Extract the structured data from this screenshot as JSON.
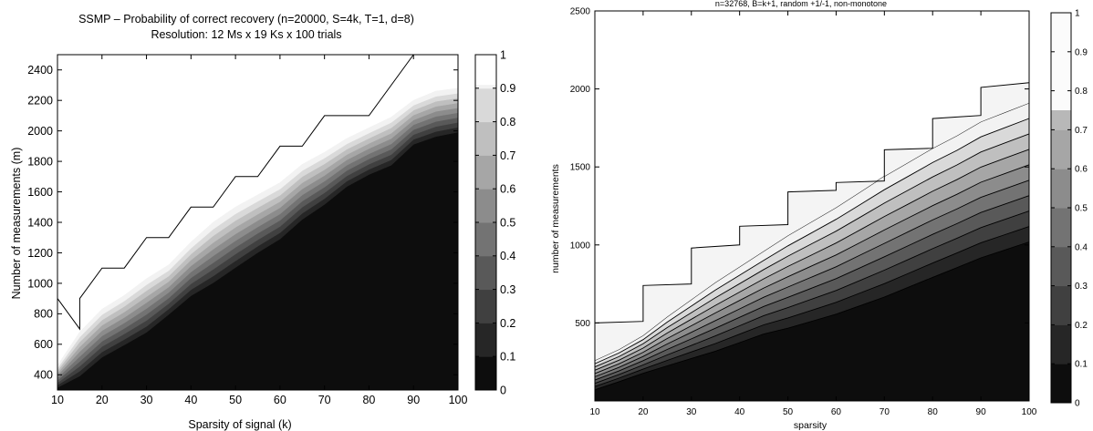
{
  "chart_data": [
    {
      "type": "contour",
      "title": "SSMP – Probability of correct recovery (n=20000, S=4k, T=1, d=8)",
      "subtitle": "Resolution: 12 Ms x 19 Ks x 100 trials",
      "xlabel": "Sparsity of signal (k)",
      "ylabel": "Number of measurements (m)",
      "xlim": [
        10,
        100
      ],
      "ylim": [
        300,
        2500
      ],
      "xticks": [
        "10",
        "20",
        "30",
        "40",
        "50",
        "60",
        "70",
        "80",
        "90",
        "100"
      ],
      "yticks": [
        "400",
        "600",
        "800",
        "1000",
        "1200",
        "1400",
        "1600",
        "1800",
        "2000",
        "2200",
        "2400"
      ],
      "colorbar": {
        "range": [
          0,
          1
        ],
        "ticks": [
          "0",
          "0.1",
          "0.2",
          "0.3",
          "0.4",
          "0.5",
          "0.6",
          "0.7",
          "0.8",
          "0.9",
          "1"
        ]
      },
      "sparsity": [
        10,
        15,
        20,
        25,
        30,
        35,
        40,
        45,
        50,
        55,
        60,
        65,
        70,
        75,
        80,
        85,
        90,
        95,
        100
      ],
      "transition_lower": [
        300,
        360,
        480,
        560,
        640,
        760,
        880,
        960,
        1060,
        1160,
        1250,
        1380,
        1480,
        1600,
        1680,
        1740,
        1880,
        1930,
        1960
      ],
      "transition_upper": [
        460,
        680,
        830,
        920,
        1030,
        1120,
        1270,
        1400,
        1500,
        1580,
        1660,
        1780,
        1860,
        1950,
        2020,
        2090,
        2200,
        2260,
        2280
      ],
      "outer_contour": [
        {
          "x": 10,
          "y": 900
        },
        {
          "x": 15,
          "y": 700
        },
        {
          "x": 15,
          "y": 900
        },
        {
          "x": 20,
          "y": 1100
        },
        {
          "x": 25,
          "y": 1100
        },
        {
          "x": 30,
          "y": 1300
        },
        {
          "x": 35,
          "y": 1300
        },
        {
          "x": 40,
          "y": 1500
        },
        {
          "x": 45,
          "y": 1500
        },
        {
          "x": 50,
          "y": 1700
        },
        {
          "x": 55,
          "y": 1700
        },
        {
          "x": 60,
          "y": 1900
        },
        {
          "x": 65,
          "y": 1900
        },
        {
          "x": 70,
          "y": 2100
        },
        {
          "x": 75,
          "y": 2100
        },
        {
          "x": 80,
          "y": 2100
        },
        {
          "x": 90,
          "y": 2500
        }
      ]
    },
    {
      "type": "contour",
      "title": "n=32768, B=k+1, random +1/-1, non-monotone",
      "xlabel": "sparsity",
      "ylabel": "number of measurements",
      "xlim": [
        10,
        100
      ],
      "ylim": [
        0,
        2500
      ],
      "xticks": [
        "10",
        "20",
        "30",
        "40",
        "50",
        "60",
        "70",
        "80",
        "90",
        "100"
      ],
      "yticks": [
        "500",
        "1000",
        "1500",
        "2000",
        "2500"
      ],
      "colorbar": {
        "range": [
          0,
          1
        ],
        "ticks": [
          "0",
          "0.1",
          "0.2",
          "0.3",
          "0.4",
          "0.5",
          "0.6",
          "0.7",
          "0.8",
          "0.9",
          "1"
        ]
      },
      "sparsity": [
        10,
        15,
        20,
        25,
        30,
        35,
        40,
        45,
        50,
        55,
        60,
        65,
        70,
        75,
        80,
        85,
        90,
        95,
        100
      ],
      "transition_lower": [
        50,
        100,
        150,
        190,
        230,
        270,
        320,
        370,
        400,
        440,
        480,
        530,
        580,
        640,
        700,
        760,
        820,
        870,
        920
      ],
      "transition_upper": [
        260,
        330,
        420,
        540,
        650,
        760,
        860,
        960,
        1060,
        1150,
        1240,
        1340,
        1440,
        1530,
        1620,
        1700,
        1790,
        1850,
        1910
      ],
      "outer_contour": [
        {
          "x": 10,
          "y": 500
        },
        {
          "x": 20,
          "y": 510
        },
        {
          "x": 20,
          "y": 740
        },
        {
          "x": 30,
          "y": 750
        },
        {
          "x": 30,
          "y": 980
        },
        {
          "x": 40,
          "y": 1000
        },
        {
          "x": 40,
          "y": 1120
        },
        {
          "x": 50,
          "y": 1130
        },
        {
          "x": 50,
          "y": 1340
        },
        {
          "x": 60,
          "y": 1350
        },
        {
          "x": 60,
          "y": 1400
        },
        {
          "x": 70,
          "y": 1410
        },
        {
          "x": 70,
          "y": 1610
        },
        {
          "x": 80,
          "y": 1620
        },
        {
          "x": 80,
          "y": 1810
        },
        {
          "x": 90,
          "y": 1830
        },
        {
          "x": 90,
          "y": 2010
        },
        {
          "x": 100,
          "y": 2040
        }
      ]
    }
  ]
}
